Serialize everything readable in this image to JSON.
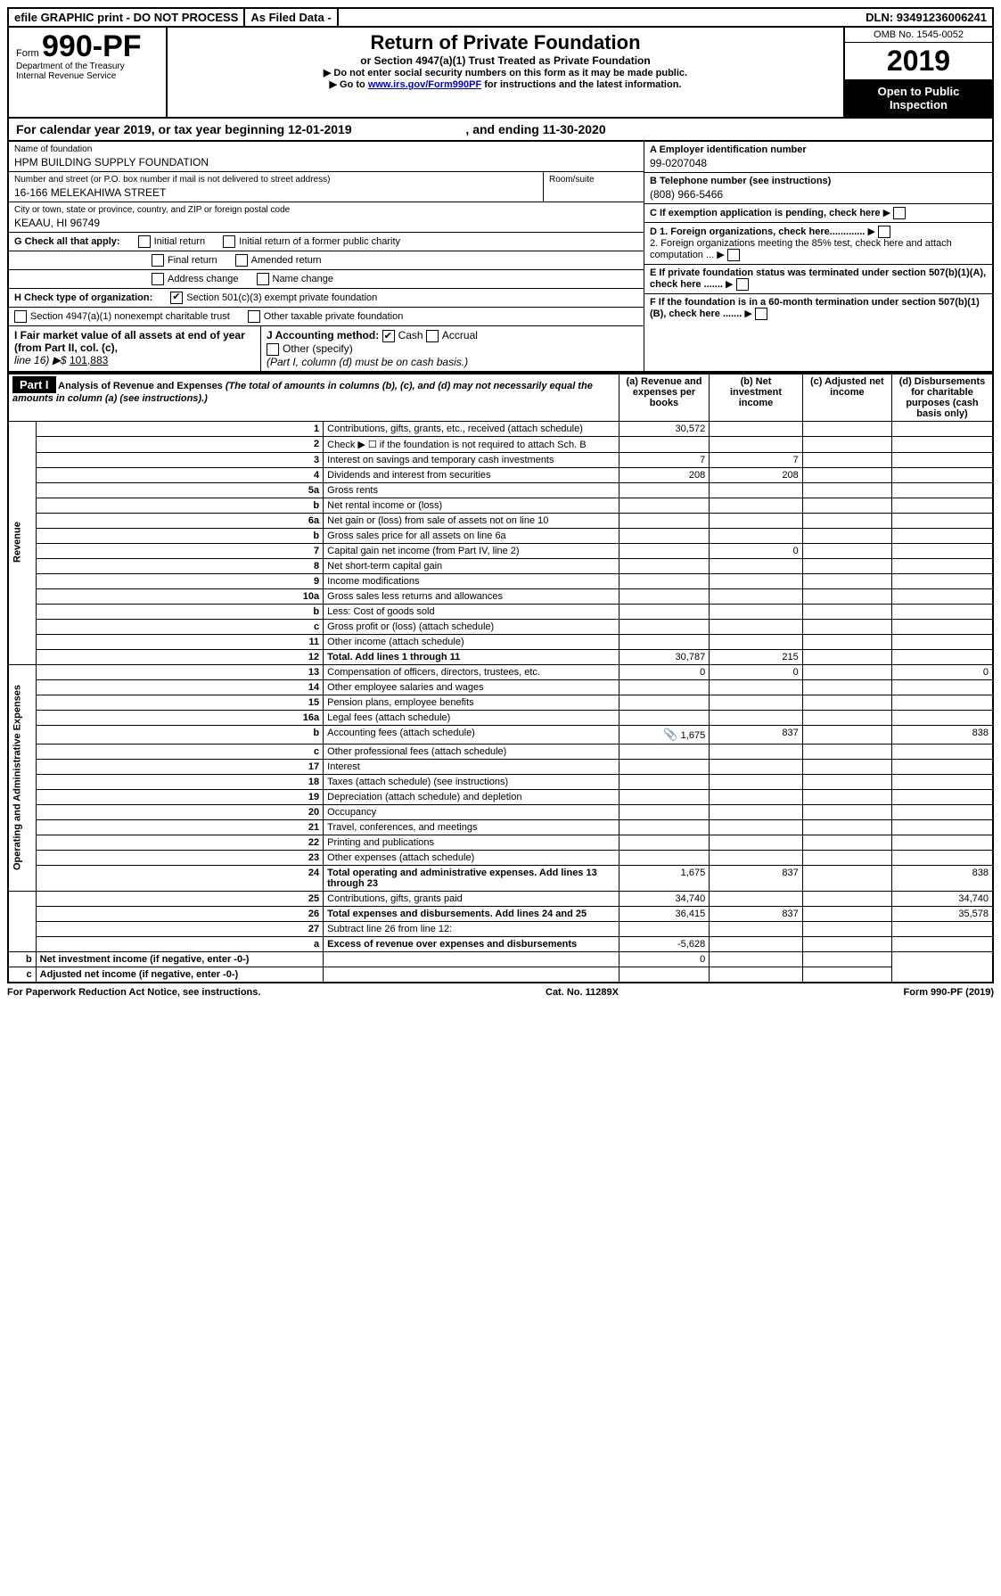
{
  "topbar": {
    "efile": "efile GRAPHIC print - DO NOT PROCESS",
    "asfiled": "As Filed Data -",
    "dln": "DLN: 93491236006241"
  },
  "header": {
    "form_prefix": "Form",
    "form_no": "990-PF",
    "dept": "Department of the Treasury",
    "irs": "Internal Revenue Service",
    "title": "Return of Private Foundation",
    "sub": "or Section 4947(a)(1) Trust Treated as Private Foundation",
    "instr1": "▶ Do not enter social security numbers on this form as it may be made public.",
    "instr2_pre": "▶ Go to ",
    "instr2_link": "www.irs.gov/Form990PF",
    "instr2_post": " for instructions and the latest information.",
    "omb": "OMB No. 1545-0052",
    "year": "2019",
    "openpub": "Open to Public Inspection"
  },
  "calyear": {
    "text": "For calendar year 2019, or tax year beginning 12-01-2019",
    "mid": ", and ending ",
    "end": "11-30-2020"
  },
  "id": {
    "name_lbl": "Name of foundation",
    "name": "HPM BUILDING SUPPLY FOUNDATION",
    "addr_lbl": "Number and street (or P.O. box number if mail is not delivered to street address)",
    "addr": "16-166 MELEKAHIWA STREET",
    "room_lbl": "Room/suite",
    "city_lbl": "City or town, state or province, country, and ZIP or foreign postal code",
    "city": "KEAAU, HI  96749",
    "A_lbl": "A Employer identification number",
    "A": "99-0207048",
    "B_lbl": "B Telephone number (see instructions)",
    "B": "(808) 966-5466",
    "C": "C If exemption application is pending, check here",
    "D1": "D 1. Foreign organizations, check here.............",
    "D2": "2. Foreign organizations meeting the 85% test, check here and attach computation ... ▶",
    "E": "E If private foundation status was terminated under section 507(b)(1)(A), check here .......",
    "F": "F If the foundation is in a 60-month termination under section 507(b)(1)(B), check here .......",
    "G": "G Check all that apply:",
    "G1": "Initial return",
    "G2": "Initial return of a former public charity",
    "G3": "Final return",
    "G4": "Amended return",
    "G5": "Address change",
    "G6": "Name change",
    "H": "H Check type of organization:",
    "H1": "Section 501(c)(3) exempt private foundation",
    "H2": "Section 4947(a)(1) nonexempt charitable trust",
    "H3": "Other taxable private foundation",
    "I": "I Fair market value of all assets at end of year (from Part II, col. (c),",
    "I2": "line 16) ▶$",
    "Ival": "101,883",
    "J": "J Accounting method:",
    "J1": "Cash",
    "J2": "Accrual",
    "J3": "Other (specify)",
    "Jnote": "(Part I, column (d) must be on cash basis.)"
  },
  "part1": {
    "label": "Part I",
    "title": "Analysis of Revenue and Expenses",
    "note": "(The total of amounts in columns (b), (c), and (d) may not necessarily equal the amounts in column (a) (see instructions).)",
    "cols": {
      "a": "(a) Revenue and expenses per books",
      "b": "(b) Net investment income",
      "c": "(c) Adjusted net income",
      "d": "(d) Disbursements for charitable purposes (cash basis only)"
    }
  },
  "rows": [
    {
      "n": "1",
      "d": "Contributions, gifts, grants, etc., received (attach schedule)",
      "a": "30,572"
    },
    {
      "n": "2",
      "d": "Check ▶ ☐ if the foundation is not required to attach Sch. B"
    },
    {
      "n": "3",
      "d": "Interest on savings and temporary cash investments",
      "a": "7",
      "b": "7"
    },
    {
      "n": "4",
      "d": "Dividends and interest from securities",
      "a": "208",
      "b": "208"
    },
    {
      "n": "5a",
      "d": "Gross rents"
    },
    {
      "n": "b",
      "d": "Net rental income or (loss)"
    },
    {
      "n": "6a",
      "d": "Net gain or (loss) from sale of assets not on line 10"
    },
    {
      "n": "b",
      "d": "Gross sales price for all assets on line 6a"
    },
    {
      "n": "7",
      "d": "Capital gain net income (from Part IV, line 2)",
      "b": "0"
    },
    {
      "n": "8",
      "d": "Net short-term capital gain"
    },
    {
      "n": "9",
      "d": "Income modifications"
    },
    {
      "n": "10a",
      "d": "Gross sales less returns and allowances"
    },
    {
      "n": "b",
      "d": "Less: Cost of goods sold"
    },
    {
      "n": "c",
      "d": "Gross profit or (loss) (attach schedule)"
    },
    {
      "n": "11",
      "d": "Other income (attach schedule)"
    },
    {
      "n": "12",
      "d": "Total. Add lines 1 through 11",
      "a": "30,787",
      "b": "215",
      "bold": true
    },
    {
      "n": "13",
      "d": "Compensation of officers, directors, trustees, etc.",
      "a": "0",
      "b": "0",
      "dd": "0"
    },
    {
      "n": "14",
      "d": "Other employee salaries and wages"
    },
    {
      "n": "15",
      "d": "Pension plans, employee benefits"
    },
    {
      "n": "16a",
      "d": "Legal fees (attach schedule)"
    },
    {
      "n": "b",
      "d": "Accounting fees (attach schedule)",
      "a": "1,675",
      "b": "837",
      "dd": "838",
      "icon": true
    },
    {
      "n": "c",
      "d": "Other professional fees (attach schedule)"
    },
    {
      "n": "17",
      "d": "Interest"
    },
    {
      "n": "18",
      "d": "Taxes (attach schedule) (see instructions)"
    },
    {
      "n": "19",
      "d": "Depreciation (attach schedule) and depletion"
    },
    {
      "n": "20",
      "d": "Occupancy"
    },
    {
      "n": "21",
      "d": "Travel, conferences, and meetings"
    },
    {
      "n": "22",
      "d": "Printing and publications"
    },
    {
      "n": "23",
      "d": "Other expenses (attach schedule)"
    },
    {
      "n": "24",
      "d": "Total operating and administrative expenses. Add lines 13 through 23",
      "a": "1,675",
      "b": "837",
      "dd": "838",
      "bold": true
    },
    {
      "n": "25",
      "d": "Contributions, gifts, grants paid",
      "a": "34,740",
      "dd": "34,740"
    },
    {
      "n": "26",
      "d": "Total expenses and disbursements. Add lines 24 and 25",
      "a": "36,415",
      "b": "837",
      "dd": "35,578",
      "bold": true
    },
    {
      "n": "27",
      "d": "Subtract line 26 from line 12:"
    },
    {
      "n": "a",
      "d": "Excess of revenue over expenses and disbursements",
      "a": "-5,628",
      "bold": true
    },
    {
      "n": "b",
      "d": "Net investment income (if negative, enter -0-)",
      "b": "0",
      "bold": true
    },
    {
      "n": "c",
      "d": "Adjusted net income (if negative, enter -0-)",
      "bold": true
    }
  ],
  "sidelabels": {
    "rev": "Revenue",
    "exp": "Operating and Administrative Expenses"
  },
  "footer": {
    "left": "For Paperwork Reduction Act Notice, see instructions.",
    "mid": "Cat. No. 11289X",
    "right": "Form 990-PF (2019)"
  }
}
